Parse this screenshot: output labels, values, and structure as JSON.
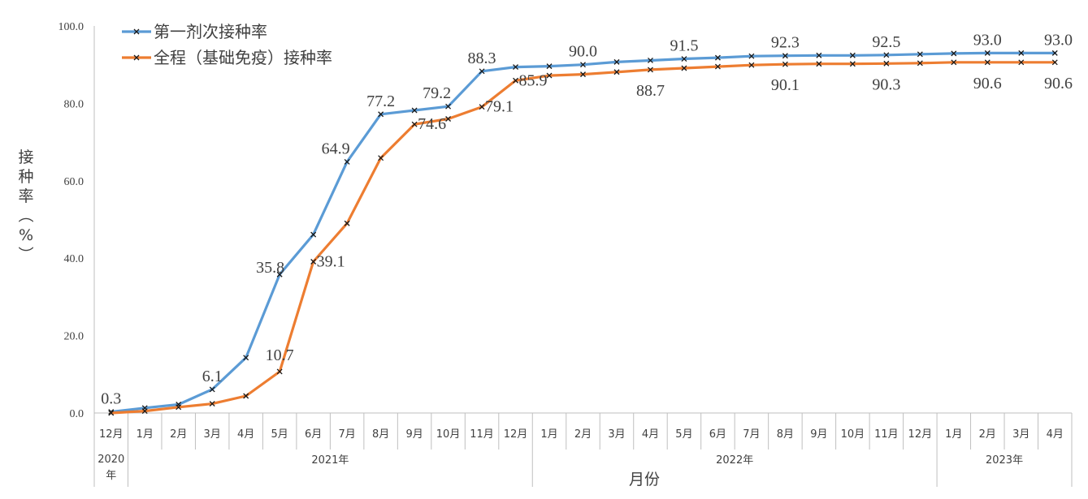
{
  "chart_data": {
    "type": "line",
    "xlabel": "月份",
    "ylabel": "接种率（%）",
    "ylim": [
      0,
      100
    ],
    "yticks": [
      "0.0",
      "20.0",
      "40.0",
      "60.0",
      "80.0",
      "100.0"
    ],
    "grid": false,
    "legend_position": "top-left",
    "categories": [
      "12月",
      "1月",
      "2月",
      "3月",
      "4月",
      "5月",
      "6月",
      "7月",
      "8月",
      "9月",
      "10月",
      "11月",
      "12月",
      "1月",
      "2月",
      "3月",
      "4月",
      "5月",
      "6月",
      "7月",
      "8月",
      "9月",
      "10月",
      "11月",
      "12月",
      "1月",
      "2月",
      "3月",
      "4月"
    ],
    "year_groups": [
      {
        "label": "2020年",
        "start": 0,
        "end": 0
      },
      {
        "label": "2021年",
        "start": 1,
        "end": 12
      },
      {
        "label": "2022年",
        "start": 13,
        "end": 24
      },
      {
        "label": "2023年",
        "start": 25,
        "end": 28
      }
    ],
    "series": [
      {
        "name": "第一剂次接种率",
        "color": "#5B9BD5",
        "values": [
          0.3,
          1.3,
          2.2,
          6.1,
          14.3,
          35.8,
          46.1,
          64.9,
          77.2,
          78.2,
          79.2,
          88.3,
          89.4,
          89.6,
          90.0,
          90.7,
          91.1,
          91.5,
          91.8,
          92.2,
          92.3,
          92.4,
          92.4,
          92.5,
          92.7,
          92.9,
          93.0,
          93.0,
          93.0
        ],
        "labels": {
          "0": "0.3",
          "3": "6.1",
          "5": "35.8",
          "7": "64.9",
          "8": "77.2",
          "10": "79.2",
          "11": "88.3",
          "14": "90.0",
          "17": "91.5",
          "20": "92.3",
          "23": "92.5",
          "26": "93.0",
          "28": "93.0"
        }
      },
      {
        "name": "全程（基础免疫）接种率",
        "color": "#ED7D31",
        "values": [
          0.0,
          0.5,
          1.5,
          2.4,
          4.4,
          10.7,
          39.1,
          49.0,
          65.9,
          74.6,
          76.0,
          79.1,
          85.9,
          87.2,
          87.5,
          88.1,
          88.7,
          89.1,
          89.5,
          89.9,
          90.1,
          90.2,
          90.2,
          90.3,
          90.4,
          90.6,
          90.6,
          90.6,
          90.6
        ],
        "labels": {
          "5": "10.7",
          "6": "39.1",
          "9": "74.6",
          "11": "79.1",
          "12": "85.9",
          "16": "88.7",
          "20": "90.1",
          "23": "90.3",
          "26": "90.6",
          "28": "90.6"
        }
      }
    ]
  }
}
